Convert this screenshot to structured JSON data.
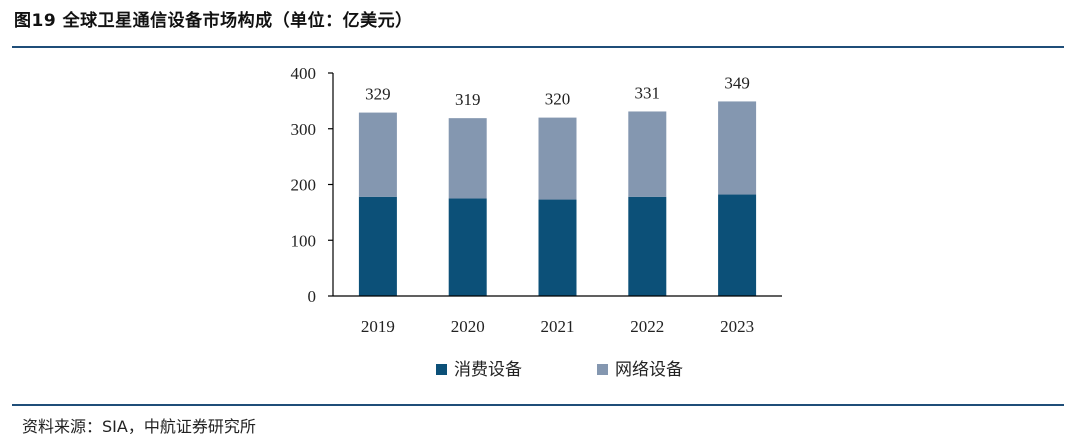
{
  "header": {
    "title": "图19  全球卫星通信设备市场构成（单位：亿美元）"
  },
  "footer": {
    "source": "资料来源：SIA，中航证券研究所"
  },
  "colors": {
    "consumer": "#0c5078",
    "network": "#8497b0",
    "rule": "#1f4e79"
  },
  "chart_data": {
    "type": "bar",
    "stacked": true,
    "title": "全球卫星通信设备市场构成（单位：亿美元）",
    "categories": [
      "2019",
      "2020",
      "2021",
      "2022",
      "2023"
    ],
    "series": [
      {
        "name": "消费设备",
        "values": [
          178,
          175,
          173,
          178,
          182
        ]
      },
      {
        "name": "网络设备",
        "values": [
          151,
          144,
          147,
          153,
          167
        ]
      }
    ],
    "totals": [
      329,
      319,
      320,
      331,
      349
    ],
    "ylim": [
      0,
      400
    ],
    "yticks": [
      0,
      100,
      200,
      300,
      400
    ],
    "xlabel": "",
    "ylabel": "",
    "legend_position": "bottom"
  }
}
